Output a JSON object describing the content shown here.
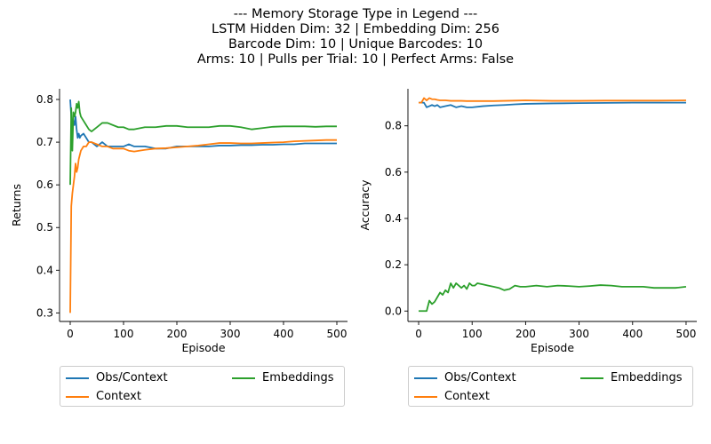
{
  "figure": {
    "title_lines": [
      "--- Memory Storage Type in Legend ---",
      "LSTM Hidden Dim: 32 | Embedding Dim: 256",
      "Barcode Dim: 10 | Unique Barcodes: 10",
      "Arms: 10 | Pulls per Trial: 10 | Perfect Arms: False"
    ]
  },
  "colors": {
    "Obs/Context": "#1f77b4",
    "Context": "#ff7f0e",
    "Embeddings": "#2ca02c"
  },
  "chart_data": [
    {
      "type": "line",
      "xlabel": "Episode",
      "ylabel": "Returns",
      "xlim": [
        -20,
        520
      ],
      "ylim": [
        0.28,
        0.825
      ],
      "xticks": [
        0,
        100,
        200,
        300,
        400,
        500
      ],
      "yticks": [
        0.3,
        0.4,
        0.5,
        0.6,
        0.7,
        0.8
      ],
      "legend": {
        "placement": "below",
        "entries": [
          "Obs/Context",
          "Context",
          "Embeddings"
        ]
      },
      "series": [
        {
          "name": "Obs/Context",
          "x": [
            0,
            2,
            4,
            6,
            8,
            10,
            12,
            14,
            16,
            18,
            20,
            25,
            30,
            35,
            40,
            50,
            60,
            70,
            80,
            90,
            100,
            110,
            120,
            140,
            160,
            180,
            200,
            220,
            240,
            260,
            280,
            300,
            320,
            340,
            360,
            380,
            400,
            420,
            440,
            460,
            480,
            500
          ],
          "y": [
            0.8,
            0.76,
            0.73,
            0.75,
            0.74,
            0.76,
            0.73,
            0.71,
            0.72,
            0.71,
            0.715,
            0.72,
            0.71,
            0.7,
            0.7,
            0.69,
            0.7,
            0.69,
            0.69,
            0.69,
            0.69,
            0.695,
            0.69,
            0.69,
            0.685,
            0.685,
            0.69,
            0.69,
            0.69,
            0.69,
            0.692,
            0.692,
            0.693,
            0.693,
            0.694,
            0.694,
            0.695,
            0.695,
            0.697,
            0.697,
            0.697,
            0.697
          ]
        },
        {
          "name": "Context",
          "x": [
            0,
            2,
            4,
            6,
            8,
            10,
            12,
            14,
            16,
            18,
            20,
            25,
            30,
            35,
            40,
            50,
            60,
            70,
            80,
            90,
            100,
            110,
            120,
            140,
            160,
            180,
            200,
            220,
            240,
            260,
            280,
            300,
            320,
            340,
            360,
            380,
            400,
            420,
            440,
            460,
            480,
            500
          ],
          "y": [
            0.3,
            0.55,
            0.58,
            0.6,
            0.62,
            0.65,
            0.63,
            0.64,
            0.66,
            0.67,
            0.68,
            0.69,
            0.69,
            0.7,
            0.7,
            0.695,
            0.69,
            0.69,
            0.685,
            0.685,
            0.685,
            0.68,
            0.678,
            0.682,
            0.685,
            0.686,
            0.688,
            0.69,
            0.692,
            0.695,
            0.698,
            0.698,
            0.697,
            0.697,
            0.698,
            0.699,
            0.7,
            0.702,
            0.703,
            0.704,
            0.705,
            0.705
          ]
        },
        {
          "name": "Embeddings",
          "x": [
            0,
            2,
            4,
            6,
            8,
            10,
            12,
            14,
            16,
            18,
            20,
            25,
            30,
            35,
            40,
            50,
            60,
            70,
            80,
            90,
            100,
            110,
            120,
            140,
            160,
            180,
            200,
            220,
            240,
            260,
            280,
            300,
            320,
            340,
            360,
            380,
            400,
            420,
            440,
            460,
            480,
            500
          ],
          "y": [
            0.6,
            0.78,
            0.68,
            0.77,
            0.76,
            0.77,
            0.79,
            0.78,
            0.795,
            0.77,
            0.76,
            0.75,
            0.74,
            0.73,
            0.725,
            0.735,
            0.745,
            0.745,
            0.74,
            0.735,
            0.735,
            0.73,
            0.73,
            0.735,
            0.735,
            0.738,
            0.738,
            0.735,
            0.735,
            0.735,
            0.738,
            0.738,
            0.735,
            0.73,
            0.733,
            0.736,
            0.737,
            0.737,
            0.737,
            0.736,
            0.737,
            0.737
          ]
        }
      ]
    },
    {
      "type": "line",
      "xlabel": "Episode",
      "ylabel": "Accuracy",
      "xlim": [
        -20,
        520
      ],
      "ylim": [
        -0.045,
        0.96
      ],
      "xticks": [
        0,
        100,
        200,
        300,
        400,
        500
      ],
      "yticks": [
        0.0,
        0.2,
        0.4,
        0.6,
        0.8
      ],
      "legend": {
        "placement": "below",
        "entries": [
          "Obs/Context",
          "Context",
          "Embeddings"
        ]
      },
      "series": [
        {
          "name": "Obs/Context",
          "x": [
            0,
            5,
            10,
            15,
            20,
            25,
            30,
            35,
            40,
            50,
            60,
            70,
            80,
            90,
            100,
            120,
            140,
            160,
            180,
            200,
            250,
            300,
            350,
            400,
            450,
            500
          ],
          "y": [
            0.9,
            0.9,
            0.9,
            0.88,
            0.885,
            0.89,
            0.885,
            0.89,
            0.88,
            0.885,
            0.89,
            0.88,
            0.885,
            0.88,
            0.88,
            0.885,
            0.888,
            0.89,
            0.893,
            0.895,
            0.897,
            0.898,
            0.899,
            0.9,
            0.9,
            0.9
          ]
        },
        {
          "name": "Context",
          "x": [
            0,
            5,
            10,
            15,
            20,
            25,
            30,
            35,
            40,
            50,
            60,
            70,
            80,
            90,
            100,
            120,
            140,
            160,
            180,
            200,
            250,
            300,
            350,
            400,
            450,
            500
          ],
          "y": [
            0.9,
            0.9,
            0.92,
            0.91,
            0.92,
            0.915,
            0.915,
            0.912,
            0.91,
            0.91,
            0.908,
            0.908,
            0.908,
            0.907,
            0.907,
            0.907,
            0.907,
            0.908,
            0.909,
            0.91,
            0.908,
            0.908,
            0.909,
            0.909,
            0.909,
            0.91
          ]
        },
        {
          "name": "Embeddings",
          "x": [
            0,
            5,
            10,
            15,
            20,
            25,
            30,
            35,
            40,
            45,
            50,
            55,
            60,
            65,
            70,
            75,
            80,
            85,
            90,
            95,
            100,
            105,
            110,
            120,
            130,
            140,
            150,
            160,
            170,
            180,
            190,
            200,
            220,
            240,
            260,
            280,
            300,
            320,
            340,
            360,
            380,
            400,
            420,
            440,
            460,
            480,
            500
          ],
          "y": [
            0.0,
            0.0,
            0.0,
            0.0,
            0.045,
            0.03,
            0.04,
            0.06,
            0.08,
            0.07,
            0.09,
            0.08,
            0.12,
            0.1,
            0.12,
            0.11,
            0.1,
            0.11,
            0.095,
            0.12,
            0.11,
            0.11,
            0.12,
            0.115,
            0.11,
            0.105,
            0.1,
            0.09,
            0.095,
            0.11,
            0.105,
            0.105,
            0.11,
            0.105,
            0.11,
            0.108,
            0.105,
            0.108,
            0.112,
            0.11,
            0.105,
            0.105,
            0.105,
            0.1,
            0.1,
            0.1,
            0.105
          ]
        }
      ]
    }
  ]
}
